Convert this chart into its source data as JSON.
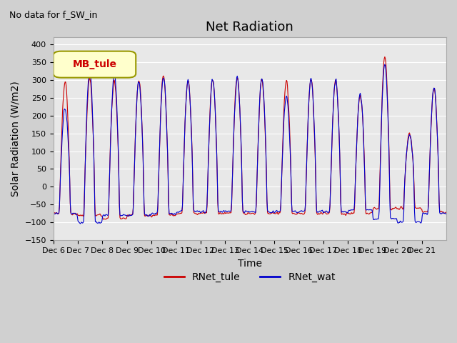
{
  "title": "Net Radiation",
  "subtitle": "No data for f_SW_in",
  "ylabel": "Solar Radiation (W/m2)",
  "xlabel": "Time",
  "ylim": [
    -150,
    420
  ],
  "yticks": [
    -150,
    -100,
    -50,
    0,
    50,
    100,
    150,
    200,
    250,
    300,
    350,
    400
  ],
  "xtick_labels": [
    "Dec 6",
    "Dec 7",
    "Dec 8",
    "Dec 9",
    "Dec 10",
    "Dec 11",
    "Dec 12",
    "Dec 13",
    "Dec 14",
    "Dec 15",
    "Dec 16",
    "Dec 17",
    "Dec 18",
    "Dec 19",
    "Dec 20",
    "Dec 21"
  ],
  "line1_color": "#cc0000",
  "line2_color": "#0000cc",
  "line1_label": "RNet_tule",
  "line2_label": "RNet_wat",
  "legend_box_color": "#ffffcc",
  "legend_box_edge": "#999900",
  "legend_box_text": "MB_tule",
  "grid_color": "#ffffff",
  "title_fontsize": 13,
  "label_fontsize": 10,
  "tick_fontsize": 8
}
